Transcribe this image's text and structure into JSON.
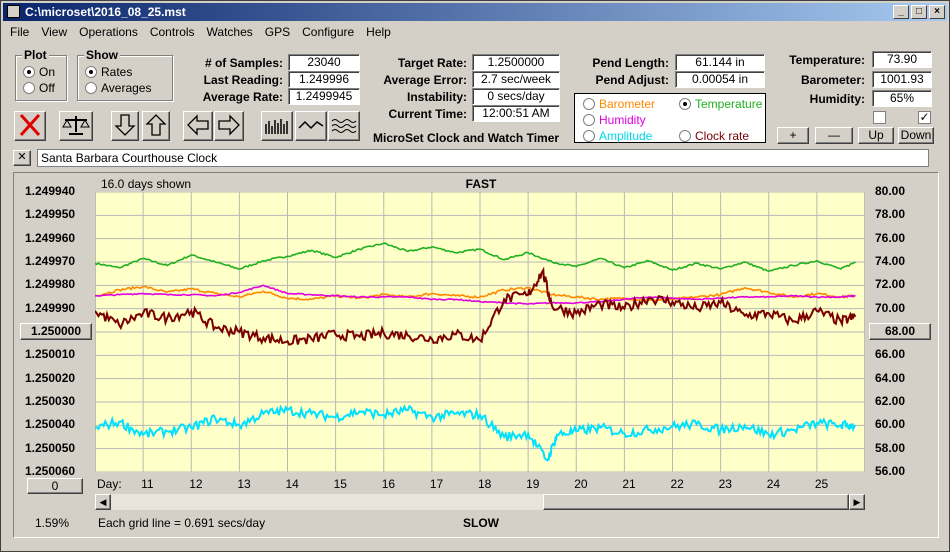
{
  "window": {
    "title": "C:\\microset\\2016_08_25.mst"
  },
  "menu": [
    "File",
    "View",
    "Operations",
    "Controls",
    "Watches",
    "GPS",
    "Configure",
    "Help"
  ],
  "plot_group": {
    "title": "Plot",
    "on": "On",
    "off": "Off"
  },
  "show_group": {
    "title": "Show",
    "rates": "Rates",
    "averages": "Averages"
  },
  "stats": {
    "samples_label": "# of Samples:",
    "samples": "23040",
    "last_label": "Last Reading:",
    "last": "1.249996",
    "avg_label": "Average Rate:",
    "avg": "1.2499945",
    "target_label": "Target Rate:",
    "target": "1.2500000",
    "avgerr_label": "Average Error:",
    "avgerr": "2.7 sec/week",
    "instab_label": "Instability:",
    "instab": "0 secs/day",
    "time_label": "Current Time:",
    "time": "12:00:51 AM",
    "pendlen_label": "Pend Length:",
    "pendlen": "61.144 in",
    "pendadj_label": "Pend Adjust:",
    "pendadj": "0.00054 in",
    "temp_label": "Temperature:",
    "temp": "73.90",
    "baro_label": "Barometer:",
    "baro": "1001.93",
    "hum_label": "Humidity:",
    "hum": "65%"
  },
  "app_caption": "MicroSet Clock and Watch Timer",
  "sensor_options": {
    "barometer": "Barometer",
    "temperature": "Temperature",
    "humidity": "Humidity",
    "amplitude": "Amplitude",
    "clock_rate": "Clock rate"
  },
  "sensor_buttons": {
    "plus": "+",
    "minus": "—",
    "up": "Up",
    "down": "Down"
  },
  "clock_name": "Santa Barbara Courthouse Clock",
  "close_x": "✕",
  "chart": {
    "days_shown": "16.0 days shown",
    "fast": "FAST",
    "slow": "SLOW",
    "center_value": "1.250000",
    "right_marker": "68.00",
    "left_bottom_box": "0",
    "percent": "1.59%",
    "grid_note": "Each grid line = 0.691 secs/day",
    "day_label": "Day:"
  },
  "colors": {
    "plot_bg": "#ffffc8",
    "rate": "#7a0000",
    "temperature": "#22b022",
    "barometer": "#ff8800",
    "humidity": "#e000e0",
    "amplitude": "#00e0ff"
  },
  "chart_data": {
    "type": "line",
    "left_axis_ticks": [
      "1.249940",
      "1.249950",
      "1.249960",
      "1.249970",
      "1.249980",
      "1.249990",
      "1.250000",
      "1.250010",
      "1.250020",
      "1.250030",
      "1.250040",
      "1.250050",
      "1.250060"
    ],
    "right_axis_ticks": [
      "80.00",
      "78.00",
      "76.00",
      "74.00",
      "72.00",
      "70.00",
      "68.00",
      "66.00",
      "64.00",
      "62.00",
      "60.00",
      "58.00",
      "56.00"
    ],
    "x_ticks": [
      11,
      12,
      13,
      14,
      15,
      16,
      17,
      18,
      19,
      20,
      21,
      22,
      23,
      24,
      25
    ],
    "xlim": [
      10,
      26
    ],
    "ylim_right": [
      56,
      80
    ],
    "series": [
      {
        "name": "Temperature",
        "x": [
          10,
          10.5,
          11,
          11.5,
          12,
          12.5,
          13,
          13.5,
          14,
          14.5,
          15,
          15.5,
          16,
          16.5,
          17,
          17.5,
          18,
          18.5,
          19,
          19.5,
          20,
          20.5,
          21,
          21.5,
          22,
          22.5,
          23,
          23.5,
          24,
          24.5,
          25,
          25.5,
          25.8
        ],
        "values": [
          73.9,
          73.5,
          74.3,
          73.7,
          74.6,
          74.0,
          73.4,
          74.1,
          74.5,
          75.0,
          74.4,
          75.1,
          75.6,
          74.9,
          75.3,
          74.8,
          75.1,
          74.2,
          74.8,
          74.0,
          73.6,
          74.3,
          73.5,
          74.1,
          73.3,
          73.9,
          73.4,
          74.0,
          73.2,
          73.7,
          74.1,
          73.4,
          74.0
        ]
      },
      {
        "name": "Barometer",
        "x": [
          10,
          10.5,
          11,
          11.5,
          12,
          12.5,
          13,
          13.5,
          14,
          14.5,
          15,
          15.5,
          16,
          16.5,
          17,
          17.5,
          18,
          18.5,
          19,
          19.5,
          20,
          20.5,
          21,
          21.5,
          22,
          22.5,
          23,
          23.5,
          24,
          24.5,
          25,
          25.5,
          25.8
        ],
        "values": [
          71.1,
          71.6,
          71.9,
          71.4,
          71.7,
          71.3,
          71.0,
          71.5,
          70.9,
          70.8,
          71.1,
          70.9,
          71.2,
          71.0,
          71.3,
          71.1,
          71.0,
          71.6,
          71.8,
          71.2,
          71.0,
          70.8,
          70.9,
          70.7,
          70.8,
          71.0,
          71.2,
          71.8,
          71.4,
          71.0,
          71.3,
          71.0,
          71.1
        ]
      },
      {
        "name": "Humidity",
        "x": [
          10,
          10.5,
          11,
          11.5,
          12,
          12.5,
          13,
          13.5,
          14,
          14.5,
          15,
          15.5,
          16,
          16.5,
          17,
          17.5,
          18,
          18.5,
          19,
          19.5,
          20,
          20.5,
          21,
          21.5,
          22,
          22.5,
          23,
          23.5,
          24,
          24.5,
          25,
          25.5,
          25.8
        ],
        "values": [
          71.1,
          71.2,
          71.3,
          71.2,
          71.2,
          71.1,
          71.4,
          72.0,
          71.3,
          71.2,
          71.1,
          71.0,
          71.0,
          71.0,
          70.8,
          70.8,
          70.6,
          70.5,
          70.4,
          70.5,
          70.5,
          70.6,
          70.8,
          71.0,
          70.9,
          70.8,
          70.9,
          71.0,
          71.0,
          71.1,
          71.0,
          71.0,
          71.1
        ]
      },
      {
        "name": "Clock rate",
        "x": [
          10,
          10.5,
          11,
          11.5,
          12,
          12.5,
          13,
          13.5,
          14,
          14.5,
          15,
          15.5,
          16,
          16.5,
          17,
          17.5,
          18,
          18.5,
          19,
          19.3,
          19.5,
          20,
          20.5,
          21,
          21.5,
          22,
          22.5,
          23,
          23.5,
          24,
          24.5,
          25,
          25.5,
          25.8
        ],
        "values": [
          69.8,
          68.6,
          69.6,
          69.2,
          69.8,
          68.4,
          68.0,
          67.5,
          67.2,
          67.4,
          67.8,
          67.6,
          67.9,
          67.7,
          67.4,
          67.8,
          67.3,
          70.8,
          71.2,
          73.2,
          70.2,
          69.6,
          70.4,
          70.0,
          70.9,
          70.6,
          70.0,
          70.5,
          69.4,
          69.6,
          68.9,
          69.8,
          68.9,
          69.3
        ]
      },
      {
        "name": "Amplitude",
        "x": [
          10,
          10.5,
          11,
          11.5,
          12,
          12.5,
          13,
          13.5,
          14,
          14.5,
          15,
          15.5,
          16,
          16.5,
          17,
          17.5,
          18,
          18.5,
          19,
          19.4,
          19.6,
          20,
          20.5,
          21,
          21.5,
          22,
          22.5,
          23,
          23.5,
          24,
          24.5,
          25,
          25.5,
          25.8
        ],
        "values": [
          59.8,
          60.3,
          59.2,
          59.5,
          59.8,
          60.6,
          60.0,
          61.0,
          61.3,
          61.0,
          60.7,
          61.2,
          60.9,
          61.3,
          60.7,
          61.0,
          60.9,
          59.0,
          59.3,
          57.0,
          59.2,
          59.5,
          59.8,
          59.3,
          59.6,
          59.9,
          60.1,
          59.6,
          60.0,
          59.2,
          59.6,
          60.2,
          60.0,
          60.0
        ]
      }
    ]
  }
}
